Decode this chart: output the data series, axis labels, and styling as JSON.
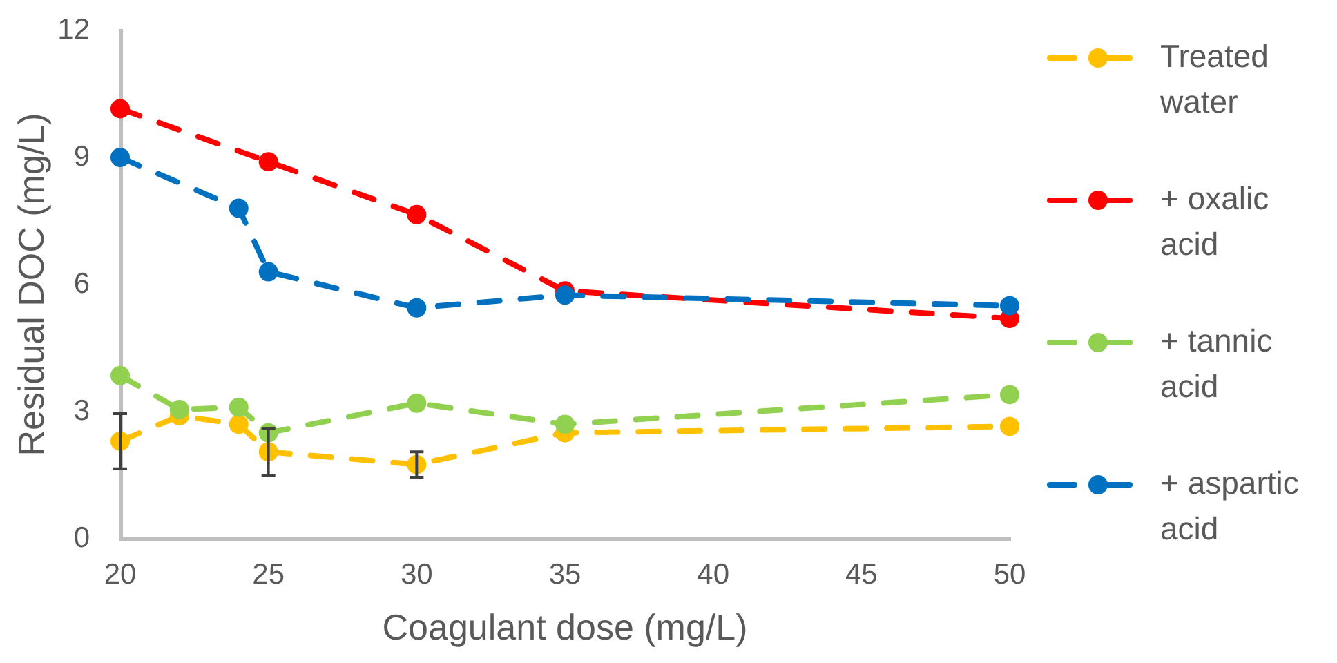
{
  "chart_data": {
    "type": "line",
    "xlabel": "Coagulant dose (mg/L)",
    "ylabel": "Residual DOC (mg/L)",
    "xlim": [
      20,
      50
    ],
    "xticks": [
      20,
      25,
      30,
      35,
      40,
      45,
      50
    ],
    "ylim": [
      0,
      12
    ],
    "yticks": [
      0,
      3,
      6,
      9,
      12
    ],
    "grid": false,
    "legend": "right",
    "marker": "circle",
    "line_style": "dashed",
    "series": [
      {
        "name": "Treated water",
        "color": "#ffc000",
        "x": [
          20,
          22,
          24,
          25,
          30,
          35,
          50
        ],
        "values": [
          2.3,
          2.9,
          2.7,
          2.05,
          1.75,
          2.5,
          2.65
        ],
        "errors": [
          0.65,
          null,
          null,
          0.55,
          0.3,
          null,
          null
        ]
      },
      {
        "name": "+ oxalic acid",
        "color": "#ff0000",
        "x": [
          20,
          25,
          30,
          35,
          50
        ],
        "values": [
          10.15,
          8.9,
          7.65,
          5.85,
          5.2
        ]
      },
      {
        "name": "+ tannic acid",
        "color": "#92d050",
        "x": [
          20,
          22,
          24,
          25,
          30,
          35,
          50
        ],
        "values": [
          3.85,
          3.05,
          3.1,
          2.5,
          3.2,
          2.7,
          3.4
        ]
      },
      {
        "name": "+ aspartic acid",
        "color": "#0070c0",
        "x": [
          20,
          24,
          25,
          30,
          35,
          50
        ],
        "values": [
          9.0,
          7.8,
          6.3,
          5.45,
          5.75,
          5.5
        ]
      }
    ]
  }
}
